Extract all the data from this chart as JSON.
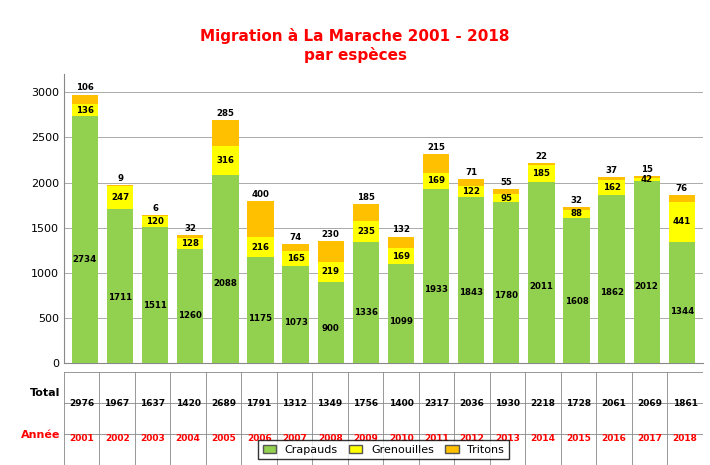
{
  "title": "Migration à La Marache 2001 - 2018\npar espèces",
  "years": [
    2001,
    2002,
    2003,
    2004,
    2005,
    2006,
    2007,
    2008,
    2009,
    2010,
    2011,
    2012,
    2013,
    2014,
    2015,
    2016,
    2017,
    2018
  ],
  "totals": [
    2976,
    1967,
    1637,
    1420,
    2689,
    1791,
    1312,
    1349,
    1756,
    1400,
    2317,
    2036,
    1930,
    2218,
    1728,
    2061,
    2069,
    1861
  ],
  "crapauds": [
    2734,
    1711,
    1511,
    1260,
    2088,
    1175,
    1073,
    900,
    1336,
    1099,
    1933,
    1843,
    1780,
    2011,
    1608,
    1862,
    2012,
    1344
  ],
  "grenouilles": [
    136,
    247,
    120,
    128,
    316,
    216,
    165,
    219,
    235,
    169,
    169,
    122,
    95,
    185,
    88,
    162,
    42,
    441
  ],
  "tritons": [
    106,
    9,
    6,
    32,
    285,
    400,
    74,
    230,
    185,
    132,
    215,
    71,
    55,
    22,
    32,
    37,
    15,
    76
  ],
  "color_crapauds": "#92D050",
  "color_grenouilles": "#FFFF00",
  "color_tritons": "#FFC000",
  "color_title": "#FF0000",
  "color_annee": "#FF0000",
  "ylim": [
    0,
    3200
  ],
  "yticks": [
    0,
    500,
    1000,
    1500,
    2000,
    2500,
    3000
  ],
  "bg_color": "#FFFFFF",
  "grid_color": "#AAAAAA",
  "bar_width": 0.75
}
